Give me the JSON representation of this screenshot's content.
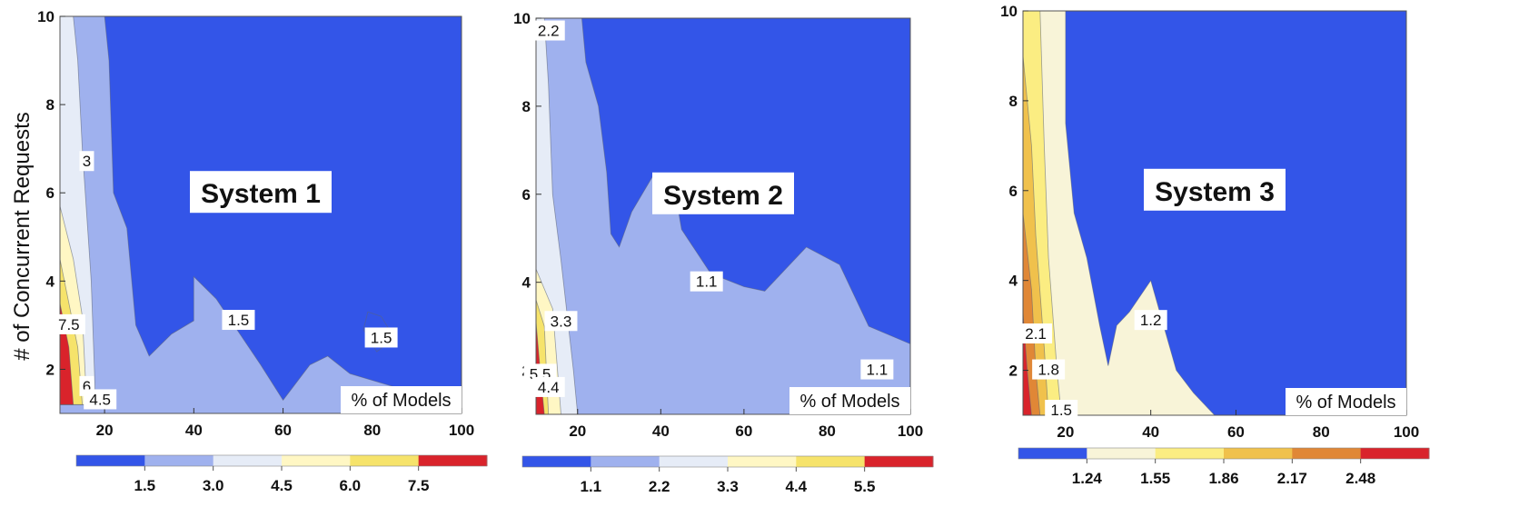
{
  "shared": {
    "ylabel": "# of Concurrent Requests"
  },
  "chart_data": [
    {
      "type": "contour",
      "title": "System 1",
      "xlabel": "% of Models",
      "ylabel": "# of Concurrent Requests",
      "xlim": [
        10,
        100
      ],
      "ylim": [
        1,
        10
      ],
      "xticks": [
        "20",
        "40",
        "60",
        "80",
        "100"
      ],
      "yticks": [
        "2",
        "4",
        "6",
        "8",
        "10"
      ],
      "colorbar": {
        "colors": [
          "#3355e8",
          "#9fb1ee",
          "#e6ecf7",
          "#fff7c4",
          "#f6e36b",
          "#d9232b"
        ],
        "tick_labels": [
          "1.5",
          "3.0",
          "4.5",
          "6.0",
          "7.5"
        ]
      },
      "background": "#9fb1ee",
      "regions": [
        {
          "level": "<1.5",
          "color": "#3355e8",
          "points": [
            [
              20,
              10
            ],
            [
              100,
              10
            ],
            [
              100,
              1.6
            ],
            [
              85,
              1.6
            ],
            [
              75,
              1.9
            ],
            [
              70,
              2.3
            ],
            [
              66,
              2.1
            ],
            [
              60,
              1.3
            ],
            [
              55,
              2.1
            ],
            [
              45,
              3.6
            ],
            [
              40,
              4.1
            ],
            [
              40,
              3.1
            ],
            [
              35,
              2.8
            ],
            [
              30,
              2.3
            ],
            [
              27,
              3.0
            ],
            [
              25,
              5.2
            ],
            [
              22,
              6.0
            ],
            [
              21,
              9.0
            ]
          ]
        },
        {
          "level": "<1.5",
          "color": "#3355e8",
          "points": [
            [
              79,
              3.3
            ],
            [
              82,
              3.2
            ],
            [
              85,
              2.7
            ],
            [
              81,
              2.4
            ],
            [
              78,
              2.9
            ]
          ]
        },
        {
          "level": "3.0-4.5",
          "color": "#e6ecf7",
          "points": [
            [
              10,
              10
            ],
            [
              10,
              1.2
            ],
            [
              18,
              1.2
            ],
            [
              17,
              4.0
            ],
            [
              15,
              7.0
            ],
            [
              14,
              9.0
            ],
            [
              13,
              10
            ]
          ]
        },
        {
          "level": "4.5-6.0",
          "color": "#fff7c4",
          "points": [
            [
              10,
              5.7
            ],
            [
              13,
              4.5
            ],
            [
              15,
              3.2
            ],
            [
              16,
              1.2
            ],
            [
              10,
              1.2
            ]
          ]
        },
        {
          "level": "6.0-7.5",
          "color": "#f6e36b",
          "points": [
            [
              10,
              4.5
            ],
            [
              12,
              3.5
            ],
            [
              14,
              2.5
            ],
            [
              15,
              1.2
            ],
            [
              10,
              1.2
            ]
          ]
        },
        {
          "level": ">7.5",
          "color": "#d9232b",
          "points": [
            [
              10,
              3.5
            ],
            [
              12,
              2.5
            ],
            [
              13,
              1.2
            ],
            [
              10,
              1.2
            ]
          ]
        }
      ],
      "contour_labels": [
        {
          "text": "3",
          "x": 16,
          "y": 6.7
        },
        {
          "text": "7.5",
          "x": 12,
          "y": 3.0
        },
        {
          "text": "6",
          "x": 16,
          "y": 1.6
        },
        {
          "text": "4.5",
          "x": 19,
          "y": 1.3
        },
        {
          "text": "1.5",
          "x": 50,
          "y": 3.1
        },
        {
          "text": "1.5",
          "x": 82,
          "y": 2.7
        }
      ]
    },
    {
      "type": "contour",
      "title": "System 2",
      "xlabel": "% of Models",
      "ylabel": "",
      "xlim": [
        10,
        100
      ],
      "ylim": [
        1,
        10
      ],
      "xticks": [
        "20",
        "40",
        "60",
        "80",
        "100"
      ],
      "yticks": [
        "2",
        "4",
        "6",
        "8",
        "10"
      ],
      "colorbar": {
        "colors": [
          "#3355e8",
          "#9fb1ee",
          "#e6ecf7",
          "#fff7c4",
          "#f6e36b",
          "#d9232b"
        ],
        "tick_labels": [
          "1.1",
          "2.2",
          "3.3",
          "4.4",
          "5.5"
        ]
      },
      "background": "#9fb1ee",
      "regions": [
        {
          "level": "<1.1",
          "color": "#3355e8",
          "points": [
            [
              20,
              10
            ],
            [
              100,
              10
            ],
            [
              100,
              2.6
            ],
            [
              90,
              3.0
            ],
            [
              83,
              4.4
            ],
            [
              75,
              4.8
            ],
            [
              70,
              4.3
            ],
            [
              65,
              3.8
            ],
            [
              60,
              3.9
            ],
            [
              52,
              4.2
            ],
            [
              45,
              5.2
            ],
            [
              43,
              6.3
            ],
            [
              38,
              6.4
            ],
            [
              33,
              5.6
            ],
            [
              30,
              4.8
            ],
            [
              28,
              5.1
            ],
            [
              27,
              6.5
            ],
            [
              25,
              8.0
            ],
            [
              22,
              9.0
            ],
            [
              21,
              10
            ]
          ]
        },
        {
          "level": "2.2-3.3",
          "color": "#e6ecf7",
          "points": [
            [
              10,
              10
            ],
            [
              12,
              10
            ],
            [
              13,
              8.5
            ],
            [
              14,
              6.0
            ],
            [
              16,
              4.5
            ],
            [
              19,
              2.0
            ],
            [
              20,
              1.0
            ],
            [
              10,
              1.0
            ]
          ]
        },
        {
          "level": "3.3-4.4",
          "color": "#fff7c4",
          "points": [
            [
              10,
              4.3
            ],
            [
              14,
              3.4
            ],
            [
              16,
              1.0
            ],
            [
              10,
              1.0
            ]
          ]
        },
        {
          "level": "4.4-5.5",
          "color": "#f6e36b",
          "points": [
            [
              10,
              3.6
            ],
            [
              12,
              3.0
            ],
            [
              13,
              1.0
            ],
            [
              10,
              1.0
            ]
          ]
        },
        {
          "level": ">5.5",
          "color": "#d9232b",
          "points": [
            [
              10,
              3.1
            ],
            [
              11,
              2.0
            ],
            [
              12,
              1.0
            ],
            [
              10,
              1.0
            ]
          ]
        }
      ],
      "contour_labels": [
        {
          "text": "2.2",
          "x": 13,
          "y": 9.7
        },
        {
          "text": "1.1",
          "x": 51,
          "y": 4.0
        },
        {
          "text": "1.1",
          "x": 92,
          "y": 2.0
        },
        {
          "text": "3.3",
          "x": 16,
          "y": 3.1
        },
        {
          "text": "5.5",
          "x": 11,
          "y": 1.9
        },
        {
          "text": "4.4",
          "x": 13,
          "y": 1.6
        }
      ]
    },
    {
      "type": "contour",
      "title": "System 3",
      "xlabel": "% of Models",
      "ylabel": "",
      "xlim": [
        10,
        100
      ],
      "ylim": [
        1,
        10
      ],
      "xticks": [
        "20",
        "40",
        "60",
        "80",
        "100"
      ],
      "yticks": [
        "2",
        "4",
        "6",
        "8",
        "10"
      ],
      "colorbar": {
        "colors": [
          "#3355e8",
          "#f8f4d8",
          "#fbed82",
          "#f0c14c",
          "#e08736",
          "#d9232b"
        ],
        "tick_labels": [
          "1.24",
          "1.55",
          "1.86",
          "2.17",
          "2.48"
        ]
      },
      "background": "#3355e8",
      "regions": [
        {
          "level": "1.24-1.55",
          "color": "#f8f4d8",
          "points": [
            [
              10,
              10
            ],
            [
              20,
              10
            ],
            [
              20,
              7.5
            ],
            [
              22,
              5.5
            ],
            [
              25,
              4.5
            ],
            [
              28,
              3.0
            ],
            [
              30,
              2.1
            ],
            [
              32,
              3.0
            ],
            [
              35,
              3.3
            ],
            [
              40,
              4.0
            ],
            [
              43,
              3.0
            ],
            [
              46,
              2.0
            ],
            [
              50,
              1.5
            ],
            [
              55,
              1.0
            ],
            [
              10,
              1.0
            ]
          ]
        },
        {
          "level": "1.55-1.86",
          "color": "#fbed82",
          "points": [
            [
              10,
              10
            ],
            [
              14,
              10
            ],
            [
              15,
              7.0
            ],
            [
              16,
              4.5
            ],
            [
              18,
              2.0
            ],
            [
              19,
              1.0
            ],
            [
              10,
              1.0
            ]
          ]
        },
        {
          "level": "1.86-2.17",
          "color": "#f0c14c",
          "points": [
            [
              10,
              9.0
            ],
            [
              12,
              7.0
            ],
            [
              13,
              5.0
            ],
            [
              15,
              2.5
            ],
            [
              16,
              1.0
            ],
            [
              10,
              1.0
            ]
          ]
        },
        {
          "level": "2.17-2.48",
          "color": "#e08736",
          "points": [
            [
              10,
              5.5
            ],
            [
              12,
              3.8
            ],
            [
              13,
              2.0
            ],
            [
              14,
              1.0
            ],
            [
              10,
              1.0
            ]
          ]
        },
        {
          "level": ">2.48",
          "color": "#d9232b",
          "points": [
            [
              10,
              3.3
            ],
            [
              11,
              2.0
            ],
            [
              12,
              1.0
            ],
            [
              10,
              1.0
            ]
          ]
        }
      ],
      "contour_labels": [
        {
          "text": "1.2",
          "x": 40,
          "y": 3.1
        },
        {
          "text": "2.1",
          "x": 13,
          "y": 2.8
        },
        {
          "text": "1.8",
          "x": 16,
          "y": 2.0
        },
        {
          "text": "1.5",
          "x": 19,
          "y": 1.1
        }
      ]
    }
  ]
}
